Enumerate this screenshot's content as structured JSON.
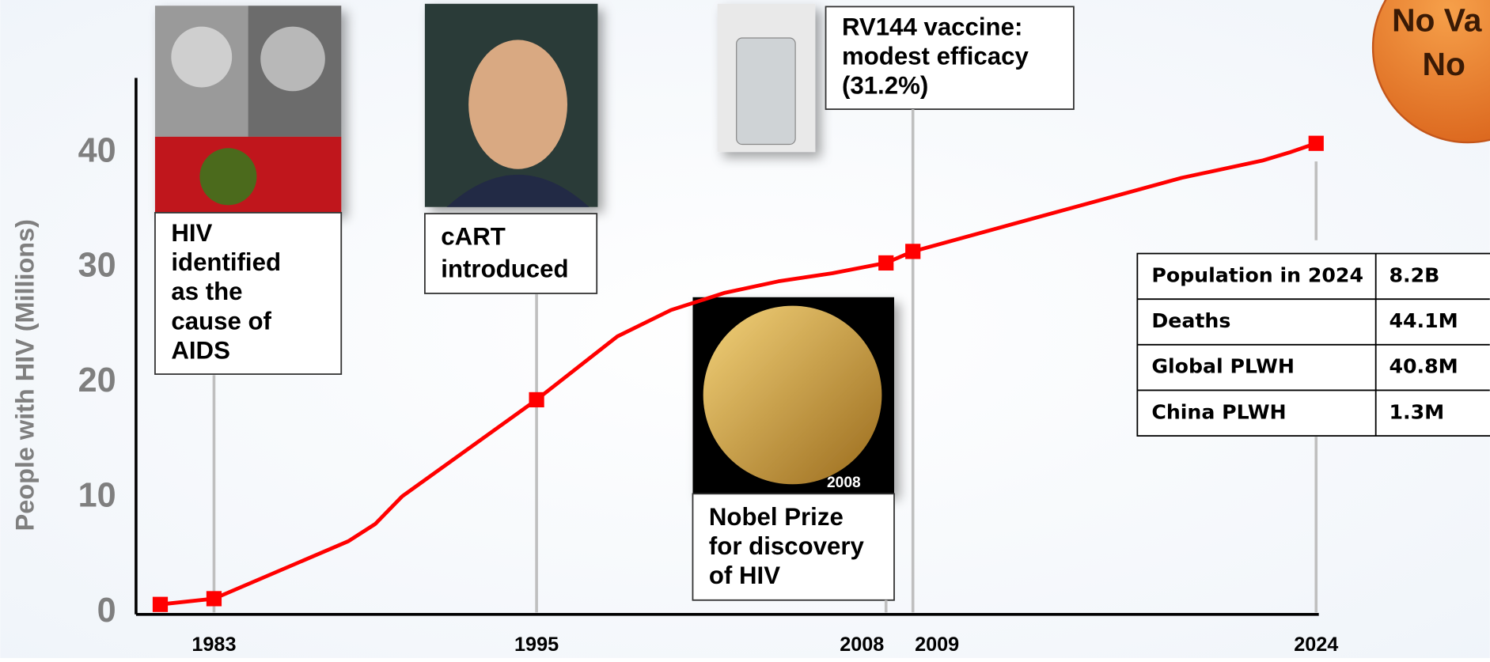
{
  "chart_data": {
    "type": "line",
    "y_label": "People with HIV (Millions)",
    "x": [
      1981,
      1983,
      1988,
      1989,
      1990,
      1995,
      1998,
      2000,
      2002,
      2004,
      2006,
      2008,
      2009,
      2014,
      2019,
      2022,
      2023,
      2024
    ],
    "values": [
      0.7,
      1.2,
      6.2,
      7.7,
      10.1,
      18.5,
      24,
      26.3,
      27.8,
      28.8,
      29.5,
      30.4,
      31.4,
      34.6,
      37.8,
      39.3,
      40,
      40.8
    ],
    "markers": [
      0,
      1,
      5,
      11,
      12,
      17
    ],
    "color": "#ff0000",
    "xlim": [
      1980.1,
      2024.1
    ],
    "xticks": [
      1983,
      1995,
      2008,
      2009,
      2024
    ],
    "ylim": [
      0,
      40.3
    ],
    "yticks": [
      0,
      10,
      20,
      30,
      40
    ],
    "annotations": [
      {
        "lines": [
          "HIV",
          "identified",
          "as the",
          "cause of",
          "AIDS"
        ]
      },
      {
        "lines": [
          "cART",
          "introduced"
        ]
      },
      {
        "lines": [
          "RV144 vaccine:",
          "modest efficacy",
          "(31.2%)"
        ]
      },
      {
        "lines": [
          "Nobel Prize",
          "for discovery",
          "of HIV"
        ],
        "image_label": "2008"
      }
    ],
    "badge": [
      "No Va",
      "No"
    ],
    "table": {
      "rows": [
        [
          "Population in 2024",
          "8.2B"
        ],
        [
          "Deaths",
          "44.1M"
        ],
        [
          "Global PLWH",
          "40.8M"
        ],
        [
          "China PLWH",
          "1.3M"
        ]
      ]
    }
  }
}
